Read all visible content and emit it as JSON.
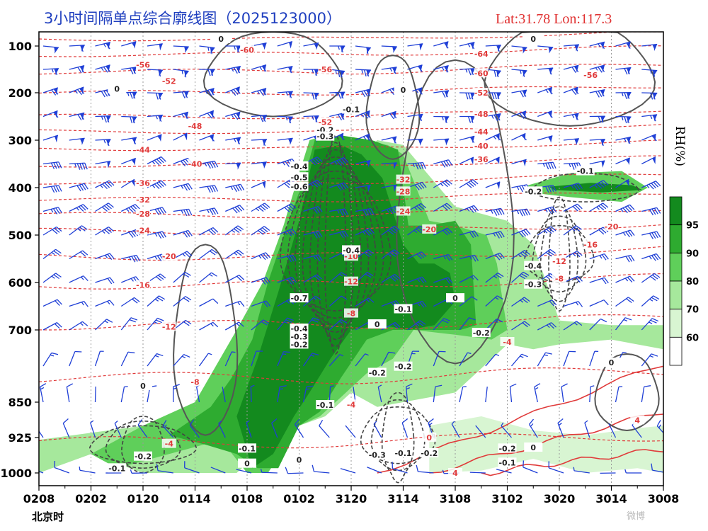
{
  "chart_data": {
    "type": "heatmap",
    "title": "3小时间隔单点综合廓线图（2025123000）",
    "location": "Lat:31.78  Lon:117.3",
    "time_axis_label": "北京时",
    "colorbar_label": "RH(%)",
    "x_ticks": [
      "0208",
      "0202",
      "0120",
      "0114",
      "0108",
      "0102",
      "3120",
      "3114",
      "3108",
      "3102",
      "3020",
      "3014",
      "3008"
    ],
    "y_ticks": [
      100,
      200,
      300,
      400,
      500,
      600,
      700,
      850,
      925,
      1000
    ],
    "y_positions": [
      100,
      200,
      300,
      400,
      500,
      600,
      700,
      850,
      925,
      1000
    ],
    "colorbar": {
      "ticks": [
        60,
        70,
        80,
        90,
        95
      ],
      "levels": [
        {
          "min": 0,
          "max": 60,
          "color": "#ffffff"
        },
        {
          "min": 60,
          "max": 70,
          "color": "#d8f5d2"
        },
        {
          "min": 70,
          "max": 80,
          "color": "#a6e89c"
        },
        {
          "min": 80,
          "max": 90,
          "color": "#5fcf5a"
        },
        {
          "min": 90,
          "max": 95,
          "color": "#2eab30"
        },
        {
          "min": 95,
          "max": 100,
          "color": "#138a1e"
        }
      ]
    },
    "rh_regions": [
      {
        "level": 70,
        "x": [
          0,
          0,
          4,
          4.5,
          5,
          5.5,
          6,
          6.5,
          7,
          8,
          9,
          9.5,
          10,
          11,
          12,
          12,
          11,
          10,
          9.5,
          9,
          8.5,
          8,
          7,
          6.5,
          6,
          5.5,
          5,
          4.5,
          3.8,
          3,
          2,
          1,
          0
        ],
        "y": [
          1000,
          930,
          870,
          760,
          620,
          480,
          360,
          300,
          310,
          440,
          470,
          520,
          680,
          690,
          690,
          740,
          720,
          730,
          740,
          730,
          780,
          830,
          850,
          860,
          830,
          880,
          900,
          930,
          1000,
          1000,
          1000,
          960,
          1000
        ]
      },
      {
        "level": 80,
        "x": [
          1,
          2,
          3,
          3.8,
          4.3,
          4.7,
          5,
          5.2,
          5.5,
          6,
          6.7,
          7,
          7.5,
          8,
          8.6,
          8.8,
          9,
          8.7,
          8,
          7.2,
          6.8,
          6.3,
          5.8,
          5.4,
          5,
          4.4,
          4,
          3.5,
          2.5,
          1.5
        ],
        "y": [
          960,
          900,
          850,
          700,
          600,
          480,
          370,
          300,
          290,
          300,
          310,
          330,
          470,
          480,
          500,
          560,
          700,
          720,
          710,
          700,
          760,
          790,
          840,
          880,
          900,
          1000,
          1000,
          930,
          960,
          990
        ]
      },
      {
        "level": 90,
        "x": [
          2.5,
          3.3,
          3.7,
          4.1,
          4.4,
          4.8,
          5.1,
          5.3,
          5.8,
          6.4,
          6.9,
          7.1,
          7.5,
          8,
          8.3,
          8.4,
          8.1,
          7.5,
          6.8,
          6.3,
          5.8,
          5.4,
          5,
          4.6,
          4.2,
          3.8,
          3.2
        ],
        "y": [
          920,
          860,
          800,
          720,
          600,
          470,
          380,
          300,
          290,
          300,
          320,
          480,
          480,
          470,
          520,
          690,
          700,
          700,
          700,
          720,
          800,
          870,
          900,
          990,
          990,
          960,
          940
        ]
      },
      {
        "level": 95,
        "x": [
          3.8,
          4.2,
          4.6,
          5,
          5.3,
          5.8,
          6.2,
          6.6,
          7,
          7.3,
          7.6,
          7.9,
          8,
          7.6,
          7.1,
          6.6,
          6,
          5.6,
          5.2,
          4.9,
          4.5,
          4.1
        ],
        "y": [
          880,
          760,
          620,
          470,
          320,
          310,
          330,
          380,
          520,
          560,
          560,
          580,
          640,
          690,
          700,
          690,
          700,
          760,
          830,
          880,
          960,
          990
        ]
      },
      {
        "level": 80,
        "x": [
          9.4,
          10.2,
          11.2,
          11.7,
          11.2,
          10.2,
          9.4
        ],
        "y": [
          395,
          370,
          365,
          400,
          430,
          420,
          410
        ]
      },
      {
        "level": 95,
        "x": [
          9.8,
          10.6,
          11.4,
          11.6,
          10.8,
          9.9
        ],
        "y": [
          398,
          390,
          395,
          405,
          410,
          405
        ]
      },
      {
        "level": 60,
        "x": [
          7.5,
          8.5,
          9.5,
          10.5,
          11.5,
          12,
          12,
          11.5,
          10.5,
          9.5,
          8.5,
          7.5
        ],
        "y": [
          900,
          880,
          910,
          920,
          905,
          900,
          1000,
          990,
          1000,
          970,
          995,
          1000
        ]
      }
    ],
    "temperature_labels": [
      {
        "v": "-60",
        "x": 4.0,
        "y": 108
      },
      {
        "v": "-56",
        "x": 2.0,
        "y": 140
      },
      {
        "v": "-56",
        "x": 5.5,
        "y": 150
      },
      {
        "v": "-52",
        "x": 2.5,
        "y": 175
      },
      {
        "v": "-48",
        "x": 3.0,
        "y": 270
      },
      {
        "v": "-44",
        "x": 2.0,
        "y": 320
      },
      {
        "v": "-40",
        "x": 3.0,
        "y": 350
      },
      {
        "v": "-36",
        "x": 2.0,
        "y": 390
      },
      {
        "v": "-32",
        "x": 2.0,
        "y": 425
      },
      {
        "v": "-28",
        "x": 2.0,
        "y": 455
      },
      {
        "v": "-24",
        "x": 2.0,
        "y": 490
      },
      {
        "v": "-20",
        "x": 2.5,
        "y": 545
      },
      {
        "v": "-16",
        "x": 2.0,
        "y": 605
      },
      {
        "v": "-12",
        "x": 2.5,
        "y": 693
      },
      {
        "v": "-8",
        "x": 3.0,
        "y": 808
      },
      {
        "v": "-4",
        "x": 2.5,
        "y": 938
      },
      {
        "v": "-64",
        "x": 8.5,
        "y": 117
      },
      {
        "v": "-60",
        "x": 8.5,
        "y": 158
      },
      {
        "v": "-56",
        "x": 10.6,
        "y": 162
      },
      {
        "v": "-52",
        "x": 8.5,
        "y": 200
      },
      {
        "v": "-48",
        "x": 8.5,
        "y": 245
      },
      {
        "v": "-44",
        "x": 8.5,
        "y": 282
      },
      {
        "v": "-40",
        "x": 8.5,
        "y": 312
      },
      {
        "v": "-36",
        "x": 8.5,
        "y": 340
      },
      {
        "v": "-32",
        "x": 7.0,
        "y": 383
      },
      {
        "v": "-28",
        "x": 7.0,
        "y": 408
      },
      {
        "v": "-24",
        "x": 7.0,
        "y": 450
      },
      {
        "v": "-20",
        "x": 7.5,
        "y": 488
      },
      {
        "v": "-20",
        "x": 11.0,
        "y": 482
      },
      {
        "v": "-16",
        "x": 10.6,
        "y": 520
      },
      {
        "v": "-12",
        "x": 10.0,
        "y": 555
      },
      {
        "v": "-8",
        "x": 10.0,
        "y": 592
      },
      {
        "v": "-10",
        "x": 6.0,
        "y": 545
      },
      {
        "v": "-12",
        "x": 6.0,
        "y": 598
      },
      {
        "v": "-8",
        "x": 6.0,
        "y": 665
      },
      {
        "v": "-4",
        "x": 9.0,
        "y": 725
      },
      {
        "v": "-4",
        "x": 6.0,
        "y": 855
      },
      {
        "v": "0",
        "x": 7.5,
        "y": 925
      },
      {
        "v": "4",
        "x": 11.5,
        "y": 888
      },
      {
        "v": "4",
        "x": 8.0,
        "y": 1000
      },
      {
        "v": "-52",
        "x": 5.5,
        "y": 262
      }
    ],
    "vertical_velocity_labels": [
      {
        "v": "0",
        "x": 3.5,
        "y": 85
      },
      {
        "v": "0",
        "x": 9.5,
        "y": 85
      },
      {
        "v": "0",
        "x": 1.5,
        "y": 192
      },
      {
        "v": "0",
        "x": 7.0,
        "y": 194
      },
      {
        "v": "-0.1",
        "x": 6.0,
        "y": 235
      },
      {
        "v": "-0.2",
        "x": 5.5,
        "y": 278
      },
      {
        "v": "-0.3",
        "x": 5.5,
        "y": 292
      },
      {
        "v": "-0.4",
        "x": 5.0,
        "y": 355
      },
      {
        "v": "-0.5",
        "x": 5.0,
        "y": 378
      },
      {
        "v": "-0.6",
        "x": 5.0,
        "y": 398
      },
      {
        "v": "-0.1",
        "x": 10.5,
        "y": 365
      },
      {
        "v": "-0.2",
        "x": 9.5,
        "y": 408
      },
      {
        "v": "-0.4",
        "x": 6.0,
        "y": 532
      },
      {
        "v": "-0.4",
        "x": 9.5,
        "y": 565
      },
      {
        "v": "-0.3",
        "x": 9.5,
        "y": 604
      },
      {
        "v": "-0.7",
        "x": 5.0,
        "y": 633
      },
      {
        "v": "0",
        "x": 8.0,
        "y": 633
      },
      {
        "v": "-0.1",
        "x": 7.0,
        "y": 656
      },
      {
        "v": "0",
        "x": 6.5,
        "y": 688
      },
      {
        "v": "-0.4",
        "x": 5.0,
        "y": 697
      },
      {
        "v": "-0.3",
        "x": 5.0,
        "y": 714
      },
      {
        "v": "-0.2",
        "x": 5.0,
        "y": 730
      },
      {
        "v": "-0.2",
        "x": 8.5,
        "y": 706
      },
      {
        "v": "-0.2",
        "x": 6.5,
        "y": 789
      },
      {
        "v": "-0.2",
        "x": 7.0,
        "y": 776
      },
      {
        "v": "0",
        "x": 2.0,
        "y": 816
      },
      {
        "v": "-0.1",
        "x": 5.5,
        "y": 856
      },
      {
        "v": "0",
        "x": 11.0,
        "y": 768
      },
      {
        "v": "-0.1",
        "x": 4.0,
        "y": 948
      },
      {
        "v": "-0.2",
        "x": 2.0,
        "y": 965
      },
      {
        "v": "-0.1",
        "x": 1.5,
        "y": 990
      },
      {
        "v": "0",
        "x": 4.0,
        "y": 980
      },
      {
        "v": "0",
        "x": 5.0,
        "y": 972
      },
      {
        "v": "-0.3",
        "x": 6.5,
        "y": 962
      },
      {
        "v": "-0.1",
        "x": 7.0,
        "y": 958
      },
      {
        "v": "-0.2",
        "x": 7.5,
        "y": 958
      },
      {
        "v": "-0.2",
        "x": 9.0,
        "y": 948
      },
      {
        "v": "-0.1",
        "x": 9.0,
        "y": 978
      },
      {
        "v": "0",
        "x": 9.5,
        "y": 946
      }
    ],
    "wind_barbs": {
      "rows": [
        {
          "p": 100,
          "speed": 60,
          "dir": 265
        },
        {
          "p": 150,
          "speed": 70,
          "dir": 265
        },
        {
          "p": 200,
          "speed": 75,
          "dir": 260
        },
        {
          "p": 250,
          "speed": 70,
          "dir": 260
        },
        {
          "p": 300,
          "speed": 60,
          "dir": 255
        },
        {
          "p": 350,
          "speed": 50,
          "dir": 255
        },
        {
          "p": 400,
          "speed": 45,
          "dir": 250
        },
        {
          "p": 450,
          "speed": 40,
          "dir": 250
        },
        {
          "p": 500,
          "speed": 35,
          "dir": 245
        },
        {
          "p": 550,
          "speed": 30,
          "dir": 245
        },
        {
          "p": 600,
          "speed": 25,
          "dir": 240
        },
        {
          "p": 650,
          "speed": 20,
          "dir": 240
        },
        {
          "p": 700,
          "speed": 20,
          "dir": 230
        },
        {
          "p": 775,
          "speed": 12,
          "dir": 210
        },
        {
          "p": 850,
          "speed": 10,
          "dir": 180
        },
        {
          "p": 925,
          "speed": 10,
          "dir": 150
        },
        {
          "p": 1000,
          "speed": 8,
          "dir": 100
        }
      ]
    }
  },
  "watermark": "微博"
}
